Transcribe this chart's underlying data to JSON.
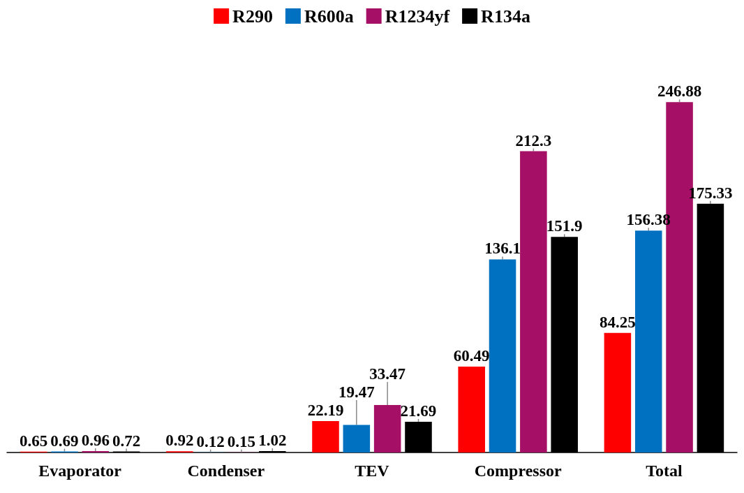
{
  "chart_data": {
    "type": "bar",
    "categories": [
      "Evaporator",
      "Condenser",
      "TEV",
      "Compressor",
      "Total"
    ],
    "series": [
      {
        "name": "R290",
        "color": "#ff0000",
        "values": [
          0.65,
          0.92,
          22.19,
          60.49,
          84.25
        ]
      },
      {
        "name": "R600a",
        "color": "#0070c0",
        "values": [
          0.69,
          0.12,
          19.47,
          136.1,
          156.38
        ]
      },
      {
        "name": "R1234yf",
        "color": "#a50f66",
        "values": [
          0.96,
          0.15,
          33.47,
          212.3,
          246.88
        ]
      },
      {
        "name": "R134a",
        "color": "#000000",
        "values": [
          0.72,
          1.02,
          21.69,
          151.9,
          175.33
        ]
      }
    ],
    "data_labels": true,
    "legend": "top"
  }
}
